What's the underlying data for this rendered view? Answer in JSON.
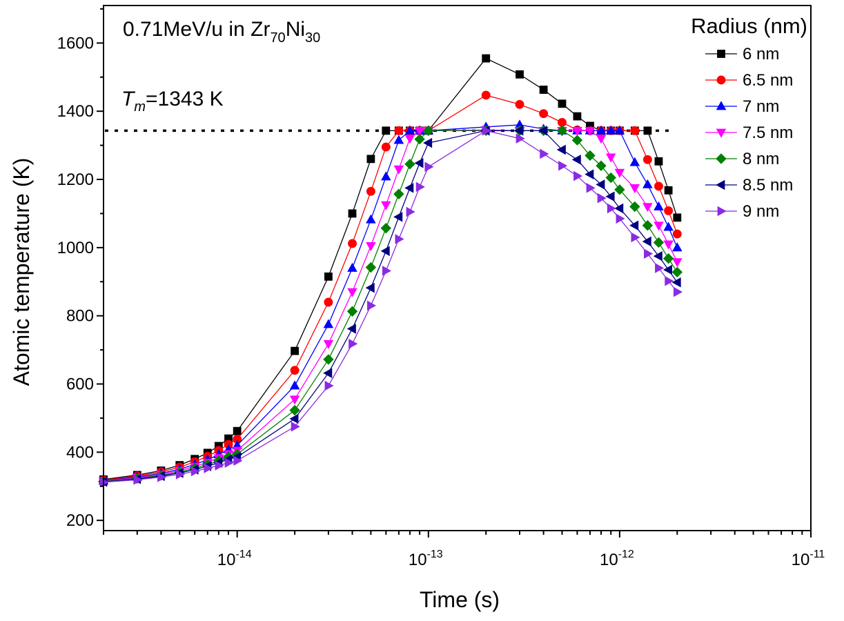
{
  "chart_data": {
    "type": "line",
    "title": {
      "prefix": "0.71MeV/u in Zr",
      "sub1": "70",
      "mid": "Ni",
      "sub2": "30"
    },
    "xlabel": "Time (s)",
    "ylabel": "Atomic temperature (K)",
    "xscale": "log",
    "xlim": [
      2e-15,
      1e-11
    ],
    "ylim": [
      170,
      1710
    ],
    "x_tick_labels": [
      {
        "value": 1e-14,
        "base": "10",
        "exp": "-14"
      },
      {
        "value": 1e-13,
        "base": "10",
        "exp": "-13"
      },
      {
        "value": 1e-12,
        "base": "10",
        "exp": "-12"
      },
      {
        "value": 1e-11,
        "base": "10",
        "exp": "-11"
      }
    ],
    "y_ticks": [
      200,
      400,
      600,
      800,
      1000,
      1200,
      1400,
      1600
    ],
    "y_tick_labels": [
      "200",
      "400",
      "600",
      "800",
      "1000",
      "1200",
      "1400",
      "1600"
    ],
    "melting_line": {
      "y": 1343,
      "label_T": "T",
      "label_sub": "m",
      "label_rest": "=1343 K"
    },
    "legend": {
      "title": "Radius (nm)",
      "position": "top-right"
    },
    "x": [
      2e-15,
      3e-15,
      4e-15,
      5e-15,
      6e-15,
      7e-15,
      8e-15,
      9e-15,
      1e-14,
      2e-14,
      3e-14,
      4e-14,
      5e-14,
      6e-14,
      7e-14,
      8e-14,
      9e-14,
      1e-13,
      2e-13,
      3e-13,
      4e-13,
      5e-13,
      6e-13,
      7e-13,
      8e-13,
      9e-13,
      1e-12,
      1.2e-12,
      1.4e-12,
      1.6e-12,
      1.8e-12,
      2e-12
    ],
    "series": [
      {
        "name": "6 nm",
        "color": "#000000",
        "marker": "square",
        "values": [
          320,
          333,
          346,
          362,
          380,
          398,
          418,
          440,
          462,
          697,
          915,
          1100,
          1260,
          1343,
          1343,
          1343,
          1343,
          1343,
          1555,
          1508,
          1463,
          1422,
          1385,
          1357,
          1343,
          1343,
          1343,
          1343,
          1343,
          1253,
          1168,
          1088
        ]
      },
      {
        "name": "6.5 nm",
        "color": "#ff0000",
        "marker": "circle",
        "values": [
          318,
          330,
          342,
          356,
          372,
          388,
          405,
          423,
          438,
          640,
          840,
          1012,
          1165,
          1295,
          1343,
          1343,
          1343,
          1343,
          1447,
          1420,
          1393,
          1367,
          1345,
          1343,
          1343,
          1343,
          1343,
          1343,
          1258,
          1180,
          1108,
          1040
        ]
      },
      {
        "name": "7 nm",
        "color": "#0000ff",
        "marker": "triangle-up",
        "values": [
          316,
          327,
          338,
          350,
          364,
          378,
          393,
          408,
          420,
          595,
          775,
          940,
          1082,
          1208,
          1315,
          1343,
          1343,
          1343,
          1354,
          1360,
          1348,
          1343,
          1343,
          1343,
          1343,
          1343,
          1343,
          1250,
          1185,
          1120,
          1060,
          1000
        ]
      },
      {
        "name": "7.5 nm",
        "color": "#ff00ff",
        "marker": "triangle-down",
        "values": [
          315,
          325,
          335,
          346,
          358,
          370,
          383,
          395,
          405,
          555,
          718,
          870,
          1005,
          1125,
          1230,
          1320,
          1343,
          1343,
          1345,
          1343,
          1343,
          1343,
          1343,
          1343,
          1320,
          1265,
          1220,
          1175,
          1120,
          1065,
          1010,
          958
        ]
      },
      {
        "name": "8 nm",
        "color": "#008000",
        "marker": "diamond",
        "values": [
          314,
          323,
          332,
          342,
          353,
          364,
          375,
          386,
          394,
          523,
          672,
          813,
          942,
          1057,
          1157,
          1245,
          1318,
          1343,
          1343,
          1343,
          1343,
          1343,
          1315,
          1270,
          1240,
          1205,
          1170,
          1120,
          1065,
          1015,
          968,
          928
        ]
      },
      {
        "name": "8.5 nm",
        "color": "#000080",
        "marker": "triangle-left",
        "values": [
          313,
          321,
          330,
          339,
          349,
          359,
          369,
          379,
          386,
          498,
          632,
          762,
          882,
          990,
          1090,
          1175,
          1248,
          1307,
          1343,
          1343,
          1343,
          1287,
          1258,
          1215,
          1185,
          1150,
          1115,
          1065,
          1018,
          975,
          935,
          898
        ]
      },
      {
        "name": "9 nm",
        "color": "#8a2be2",
        "marker": "triangle-right",
        "values": [
          312,
          319,
          327,
          335,
          344,
          353,
          361,
          369,
          375,
          475,
          595,
          718,
          830,
          932,
          1025,
          1105,
          1178,
          1237,
          1343,
          1320,
          1275,
          1240,
          1210,
          1175,
          1145,
          1115,
          1085,
          1030,
          982,
          940,
          902,
          870
        ]
      }
    ]
  }
}
